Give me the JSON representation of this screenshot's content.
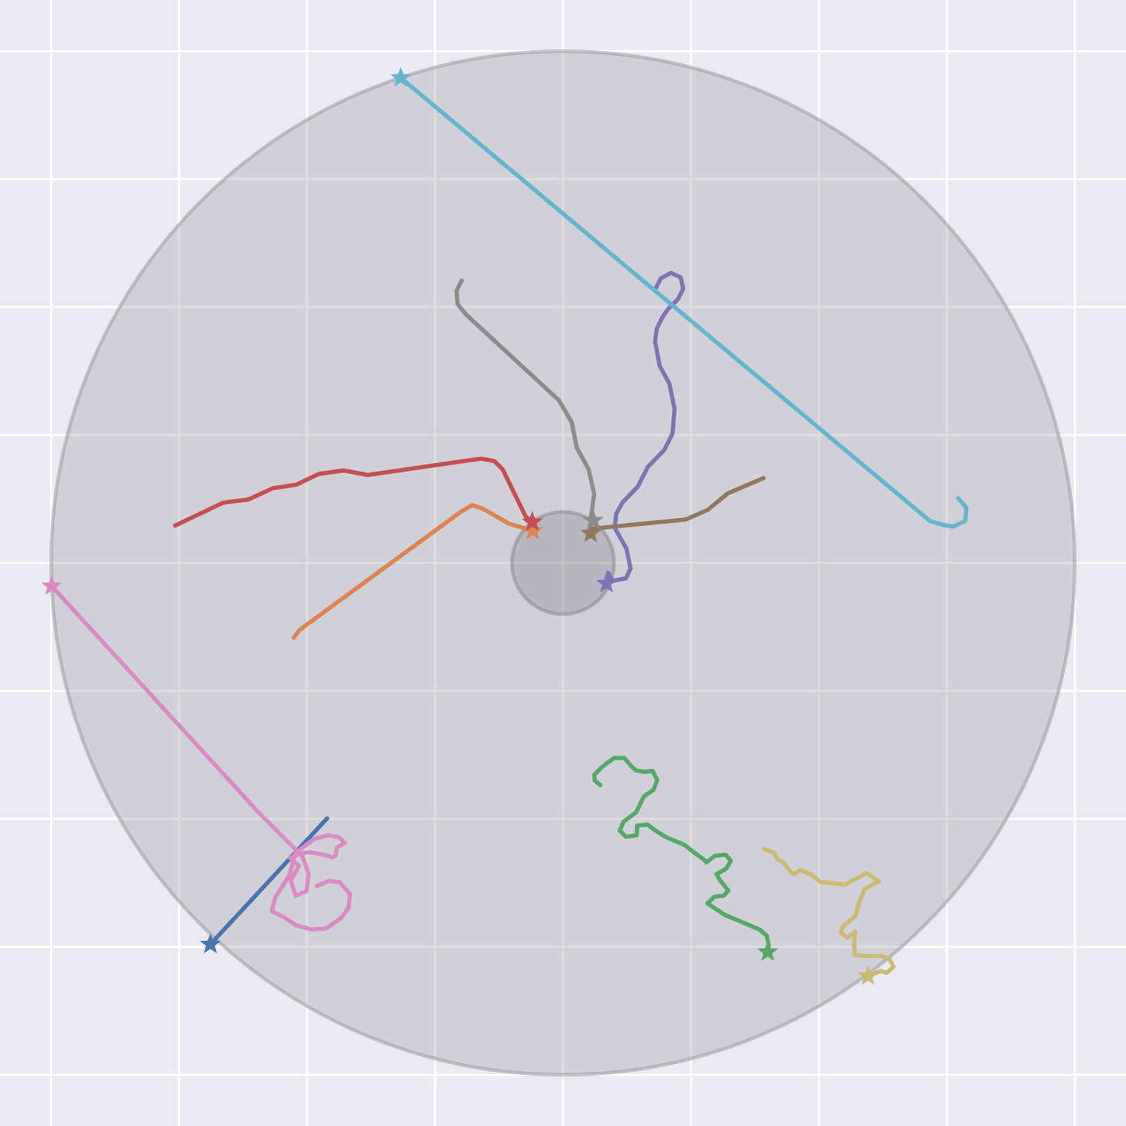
{
  "chart_data": {
    "type": "line",
    "title": "",
    "xlabel": "",
    "ylabel": "",
    "xlim": [
      -1.1,
      1.1
    ],
    "ylim": [
      -1.1,
      1.1
    ],
    "xticks": [
      -1.0,
      -0.75,
      -0.5,
      -0.25,
      0.0,
      0.25,
      0.5,
      0.75,
      1.0
    ],
    "yticks": [
      -1.0,
      -0.75,
      -0.5,
      -0.25,
      0.0,
      0.25,
      0.5,
      0.75,
      1.0
    ],
    "grid": true,
    "show_tick_labels": false,
    "background_color": "#eaeaf2",
    "grid_color": "#ffffff",
    "regions": [
      {
        "shape": "circle",
        "cx": 0.0,
        "cy": 0.0,
        "r": 1.0,
        "fill": "#a0a0a8",
        "edge": "#9a9aa0"
      },
      {
        "shape": "circle",
        "cx": 0.0,
        "cy": 0.0,
        "r": 0.1,
        "fill": "#8a8a95",
        "edge": "#8a8a92"
      }
    ],
    "series": [
      {
        "color": "#4c72b0",
        "marker_end": "star",
        "points": [
          [
            -0.461,
            -0.499
          ],
          [
            -0.689,
            -0.745
          ]
        ]
      },
      {
        "color": "#dd8452",
        "marker_end": "star",
        "points": [
          [
            -0.526,
            -0.146
          ],
          [
            -0.515,
            -0.131
          ],
          [
            -0.201,
            0.099
          ],
          [
            -0.178,
            0.113
          ],
          [
            -0.156,
            0.106
          ],
          [
            -0.106,
            0.077
          ],
          [
            -0.059,
            0.063
          ]
        ]
      },
      {
        "color": "#55a868",
        "marker_end": "star",
        "points": [
          [
            0.073,
            -0.434
          ],
          [
            0.062,
            -0.425
          ],
          [
            0.061,
            -0.414
          ],
          [
            0.077,
            -0.398
          ],
          [
            0.086,
            -0.391
          ],
          [
            0.1,
            -0.381
          ],
          [
            0.12,
            -0.381
          ],
          [
            0.13,
            -0.393
          ],
          [
            0.142,
            -0.405
          ],
          [
            0.16,
            -0.408
          ],
          [
            0.175,
            -0.406
          ],
          [
            0.184,
            -0.424
          ],
          [
            0.177,
            -0.443
          ],
          [
            0.158,
            -0.456
          ],
          [
            0.143,
            -0.487
          ],
          [
            0.118,
            -0.506
          ],
          [
            0.111,
            -0.523
          ],
          [
            0.123,
            -0.535
          ],
          [
            0.144,
            -0.532
          ],
          [
            0.145,
            -0.513
          ],
          [
            0.165,
            -0.511
          ],
          [
            0.178,
            -0.521
          ],
          [
            0.202,
            -0.536
          ],
          [
            0.238,
            -0.551
          ],
          [
            0.25,
            -0.561
          ],
          [
            0.277,
            -0.581
          ],
          [
            0.28,
            -0.585
          ],
          [
            0.297,
            -0.572
          ],
          [
            0.318,
            -0.57
          ],
          [
            0.328,
            -0.582
          ],
          [
            0.319,
            -0.597
          ],
          [
            0.3,
            -0.608
          ],
          [
            0.307,
            -0.62
          ],
          [
            0.323,
            -0.64
          ],
          [
            0.314,
            -0.65
          ],
          [
            0.296,
            -0.652
          ],
          [
            0.282,
            -0.665
          ],
          [
            0.317,
            -0.688
          ],
          [
            0.346,
            -0.7
          ],
          [
            0.384,
            -0.716
          ],
          [
            0.398,
            -0.728
          ],
          [
            0.402,
            -0.747
          ],
          [
            0.4,
            -0.76
          ]
        ]
      },
      {
        "color": "#c44e52",
        "marker_end": "star",
        "points": [
          [
            -0.758,
            0.073
          ],
          [
            -0.664,
            0.118
          ],
          [
            -0.615,
            0.124
          ],
          [
            -0.567,
            0.146
          ],
          [
            -0.521,
            0.153
          ],
          [
            -0.477,
            0.174
          ],
          [
            -0.429,
            0.181
          ],
          [
            -0.382,
            0.172
          ],
          [
            -0.16,
            0.204
          ],
          [
            -0.134,
            0.199
          ],
          [
            -0.118,
            0.183
          ],
          [
            -0.073,
            0.091
          ],
          [
            -0.06,
            0.08
          ]
        ]
      },
      {
        "color": "#8172b3",
        "marker_end": "star",
        "points": [
          [
            0.181,
            0.536
          ],
          [
            0.191,
            0.556
          ],
          [
            0.211,
            0.567
          ],
          [
            0.23,
            0.558
          ],
          [
            0.235,
            0.536
          ],
          [
            0.225,
            0.516
          ],
          [
            0.205,
            0.496
          ],
          [
            0.193,
            0.478
          ],
          [
            0.183,
            0.457
          ],
          [
            0.18,
            0.432
          ],
          [
            0.189,
            0.385
          ],
          [
            0.208,
            0.35
          ],
          [
            0.218,
            0.301
          ],
          [
            0.214,
            0.253
          ],
          [
            0.198,
            0.221
          ],
          [
            0.166,
            0.188
          ],
          [
            0.146,
            0.149
          ],
          [
            0.116,
            0.118
          ],
          [
            0.104,
            0.096
          ],
          [
            0.101,
            0.069
          ],
          [
            0.124,
            0.028
          ],
          [
            0.132,
            -0.011
          ],
          [
            0.123,
            -0.03
          ],
          [
            0.097,
            -0.035
          ],
          [
            0.088,
            -0.019
          ],
          [
            0.085,
            -0.04
          ]
        ]
      },
      {
        "color": "#937860",
        "marker_end": "star",
        "points": [
          [
            0.392,
            0.166
          ],
          [
            0.322,
            0.136
          ],
          [
            0.283,
            0.104
          ],
          [
            0.24,
            0.085
          ],
          [
            0.056,
            0.067
          ],
          [
            0.054,
            0.058
          ]
        ]
      },
      {
        "color": "#da8bc3",
        "marker_end": "star",
        "points": [
          [
            -0.481,
            -0.631
          ],
          [
            -0.457,
            -0.621
          ],
          [
            -0.436,
            -0.624
          ],
          [
            -0.416,
            -0.647
          ],
          [
            -0.419,
            -0.674
          ],
          [
            -0.434,
            -0.694
          ],
          [
            -0.463,
            -0.714
          ],
          [
            -0.491,
            -0.716
          ],
          [
            -0.521,
            -0.708
          ],
          [
            -0.544,
            -0.693
          ],
          [
            -0.569,
            -0.68
          ],
          [
            -0.562,
            -0.653
          ],
          [
            -0.534,
            -0.609
          ],
          [
            -0.523,
            -0.567
          ],
          [
            -0.486,
            -0.539
          ],
          [
            -0.458,
            -0.532
          ],
          [
            -0.437,
            -0.536
          ],
          [
            -0.426,
            -0.547
          ],
          [
            -0.442,
            -0.556
          ],
          [
            -0.444,
            -0.571
          ],
          [
            -0.45,
            -0.575
          ],
          [
            -0.471,
            -0.569
          ],
          [
            -0.496,
            -0.565
          ],
          [
            -0.513,
            -0.568
          ],
          [
            -0.533,
            -0.576
          ],
          [
            -0.516,
            -0.592
          ],
          [
            -0.532,
            -0.621
          ],
          [
            -0.522,
            -0.65
          ],
          [
            -0.501,
            -0.641
          ],
          [
            -0.497,
            -0.607
          ],
          [
            -0.505,
            -0.584
          ],
          [
            -0.51,
            -0.572
          ],
          [
            -0.596,
            -0.486
          ],
          [
            -0.999,
            -0.045
          ]
        ]
      },
      {
        "color": "#8c8c8c",
        "marker_end": "star",
        "points": [
          [
            -0.198,
            0.552
          ],
          [
            -0.208,
            0.532
          ],
          [
            -0.206,
            0.506
          ],
          [
            -0.19,
            0.486
          ],
          [
            -0.008,
            0.318
          ],
          [
            0.017,
            0.275
          ],
          [
            0.027,
            0.225
          ],
          [
            0.05,
            0.183
          ],
          [
            0.061,
            0.135
          ],
          [
            0.054,
            0.085
          ],
          [
            0.059,
            0.083
          ]
        ]
      },
      {
        "color": "#ccb974",
        "marker_end": "star",
        "points": [
          [
            0.393,
            -0.559
          ],
          [
            0.412,
            -0.566
          ],
          [
            0.42,
            -0.58
          ],
          [
            0.429,
            -0.583
          ],
          [
            0.445,
            -0.604
          ],
          [
            0.452,
            -0.608
          ],
          [
            0.463,
            -0.6
          ],
          [
            0.486,
            -0.609
          ],
          [
            0.502,
            -0.623
          ],
          [
            0.54,
            -0.627
          ],
          [
            0.549,
            -0.629
          ],
          [
            0.572,
            -0.617
          ],
          [
            0.593,
            -0.606
          ],
          [
            0.617,
            -0.622
          ],
          [
            0.589,
            -0.637
          ],
          [
            0.579,
            -0.662
          ],
          [
            0.571,
            -0.69
          ],
          [
            0.547,
            -0.71
          ],
          [
            0.543,
            -0.723
          ],
          [
            0.556,
            -0.732
          ],
          [
            0.571,
            -0.72
          ],
          [
            0.569,
            -0.743
          ],
          [
            0.57,
            -0.766
          ],
          [
            0.589,
            -0.768
          ],
          [
            0.624,
            -0.768
          ],
          [
            0.638,
            -0.774
          ],
          [
            0.646,
            -0.789
          ],
          [
            0.632,
            -0.801
          ],
          [
            0.621,
            -0.797
          ],
          [
            0.596,
            -0.807
          ]
        ]
      },
      {
        "color": "#64b5cd",
        "marker_end": "star",
        "points": [
          [
            0.772,
            0.127
          ],
          [
            0.788,
            0.108
          ],
          [
            0.786,
            0.082
          ],
          [
            0.762,
            0.071
          ],
          [
            0.741,
            0.075
          ],
          [
            0.717,
            0.082
          ],
          [
            -0.317,
            0.948
          ]
        ]
      }
    ]
  }
}
